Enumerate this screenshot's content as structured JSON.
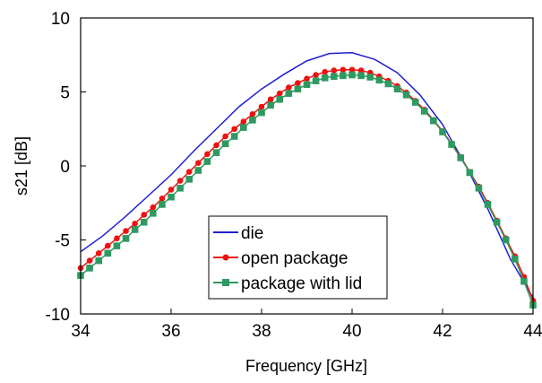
{
  "chart_data": {
    "type": "line",
    "xlabel": "Frequency [GHz]",
    "ylabel": "s21 [dB]",
    "xlim": [
      34,
      44
    ],
    "ylim": [
      -10,
      10
    ],
    "x_ticks": [
      "34",
      "36",
      "38",
      "40",
      "42",
      "44"
    ],
    "y_ticks": [
      "-10",
      "-5",
      "0",
      "5",
      "10"
    ],
    "grid": false,
    "legend": "center",
    "series": [
      {
        "name": "die",
        "color": "#1f1fd1",
        "marker": "none",
        "x": [
          34,
          34.5,
          35,
          35.5,
          36,
          36.5,
          37,
          37.5,
          38,
          38.5,
          39,
          39.5,
          40,
          40.5,
          41,
          41.5,
          42,
          42.5,
          43,
          43.5,
          44
        ],
        "y": [
          -5.8,
          -4.7,
          -3.4,
          -2.0,
          -0.6,
          1.0,
          2.5,
          4.0,
          5.2,
          6.2,
          7.1,
          7.6,
          7.65,
          7.2,
          6.3,
          4.8,
          2.8,
          0.1,
          -2.9,
          -6.3,
          -8.9
        ]
      },
      {
        "name": "open package",
        "color": "#ee1111",
        "marker": "circle",
        "x": [
          34,
          34.2,
          34.4,
          34.6,
          34.8,
          35,
          35.2,
          35.4,
          35.6,
          35.8,
          36,
          36.2,
          36.4,
          36.6,
          36.8,
          37,
          37.2,
          37.4,
          37.6,
          37.8,
          38,
          38.2,
          38.4,
          38.6,
          38.8,
          39,
          39.2,
          39.4,
          39.6,
          39.8,
          40,
          40.2,
          40.4,
          40.6,
          40.8,
          41,
          41.2,
          41.4,
          41.6,
          41.8,
          42,
          42.2,
          42.4,
          42.6,
          42.8,
          43,
          43.2,
          43.4,
          43.6,
          43.8,
          44
        ],
        "y": [
          -6.9,
          -6.4,
          -5.9,
          -5.4,
          -4.9,
          -4.4,
          -3.9,
          -3.3,
          -2.8,
          -2.2,
          -1.6,
          -1.0,
          -0.4,
          0.2,
          0.8,
          1.4,
          2.0,
          2.5,
          3.0,
          3.5,
          4.0,
          4.5,
          4.9,
          5.3,
          5.6,
          5.9,
          6.15,
          6.35,
          6.45,
          6.5,
          6.5,
          6.45,
          6.3,
          6.05,
          5.75,
          5.4,
          4.95,
          4.4,
          3.8,
          3.1,
          2.35,
          1.5,
          0.6,
          -0.4,
          -1.4,
          -2.5,
          -3.7,
          -4.9,
          -6.1,
          -7.5,
          -9.1
        ]
      },
      {
        "name": "package with lid",
        "color": "#2e9a61",
        "marker": "square",
        "x": [
          34,
          34.2,
          34.4,
          34.6,
          34.8,
          35,
          35.2,
          35.4,
          35.6,
          35.8,
          36,
          36.2,
          36.4,
          36.6,
          36.8,
          37,
          37.2,
          37.4,
          37.6,
          37.8,
          38,
          38.2,
          38.4,
          38.6,
          38.8,
          39,
          39.2,
          39.4,
          39.6,
          39.8,
          40,
          40.2,
          40.4,
          40.6,
          40.8,
          41,
          41.2,
          41.4,
          41.6,
          41.8,
          42,
          42.2,
          42.4,
          42.6,
          42.8,
          43,
          43.2,
          43.4,
          43.6,
          43.8,
          44
        ],
        "y": [
          -7.4,
          -6.9,
          -6.4,
          -5.9,
          -5.4,
          -4.9,
          -4.3,
          -3.8,
          -3.2,
          -2.6,
          -2.1,
          -1.5,
          -0.9,
          -0.3,
          0.3,
          0.9,
          1.5,
          2.0,
          2.6,
          3.1,
          3.6,
          4.1,
          4.5,
          4.9,
          5.2,
          5.5,
          5.75,
          5.95,
          6.05,
          6.1,
          6.15,
          6.1,
          6.0,
          5.8,
          5.55,
          5.2,
          4.8,
          4.3,
          3.7,
          3.05,
          2.3,
          1.45,
          0.55,
          -0.45,
          -1.5,
          -2.6,
          -3.8,
          -5.0,
          -6.3,
          -7.8,
          -9.4
        ]
      }
    ]
  }
}
